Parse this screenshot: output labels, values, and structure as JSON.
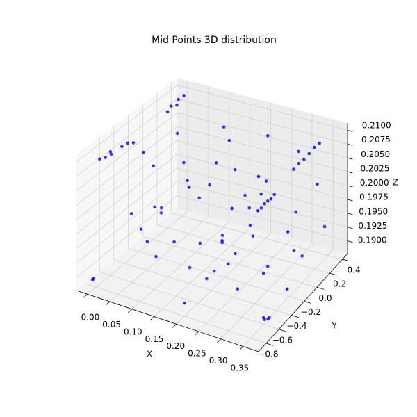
{
  "chart_data": {
    "type": "scatter3d",
    "title": "Mid Points 3D distribution",
    "x_label": "X",
    "y_label": "Y",
    "z_label": "Z",
    "color": "#0000ff",
    "grid": true,
    "xlim": [
      -0.025,
      0.385
    ],
    "ylim": [
      -0.92,
      0.48
    ],
    "zlim": [
      0.1877,
      0.2113
    ],
    "xticks": [
      {
        "value": 0,
        "label": "0.00"
      },
      0.05,
      {
        "value": 0.1,
        "label": "0.10"
      },
      0.15,
      {
        "value": 0.2,
        "label": "0.20"
      },
      0.25,
      {
        "value": 0.3,
        "label": "0.30"
      },
      0.35
    ],
    "yticks": [
      {
        "value": -0.8,
        "label": "−0.8"
      },
      {
        "value": -0.6,
        "label": "−0.6"
      },
      {
        "value": -0.4,
        "label": "−0.4"
      },
      {
        "value": -0.2,
        "label": "−0.2"
      },
      {
        "value": 0,
        "label": "0.0"
      },
      0.2,
      0.4
    ],
    "zticks": [
      {
        "value": 0.19,
        "label": "0.1900"
      },
      0.1925,
      {
        "value": 0.195,
        "label": "0.1950"
      },
      0.1975,
      {
        "value": 0.2,
        "label": "0.2000"
      },
      0.2025,
      {
        "value": 0.205,
        "label": "0.2050"
      },
      0.2075,
      {
        "value": 0.21,
        "label": "0.2100"
      }
    ],
    "x": [
      0.0,
      0.005,
      0.01,
      0.0,
      0.01,
      0.015,
      0.02,
      0.0,
      0.0,
      0.005,
      0.0,
      0.005,
      0.33,
      0.33,
      0.33,
      0.33,
      0.33,
      0.33,
      0.3,
      0.3,
      0.3,
      0.3,
      0.3,
      0.3,
      0.36,
      0.355,
      0.36,
      0.35,
      0.0,
      0.0,
      0.05,
      0.1,
      0.15,
      0.2,
      0.25,
      0.3,
      0.12,
      0.08,
      0.18,
      0.22,
      0.28,
      0.33,
      0.05,
      0.1,
      0.15,
      0.2,
      0.25,
      0.3,
      0.35,
      0.02,
      0.07,
      0.13,
      0.17,
      0.23,
      0.27,
      0.32,
      0.04,
      0.09,
      0.14,
      0.19,
      0.24,
      0.29,
      0.34,
      0.06,
      0.11,
      0.16,
      0.21,
      0.26,
      0.31,
      0.36,
      0.03,
      0.08,
      0.12,
      0.18,
      0.22,
      0.27,
      0.32,
      0.01,
      0.35,
      0.2
    ],
    "y": [
      -0.75,
      -0.7,
      -0.65,
      -0.6,
      -0.5,
      -0.45,
      -0.4,
      0.2,
      0.25,
      0.3,
      0.35,
      0.4,
      0.0,
      0.08,
      0.16,
      0.24,
      0.32,
      0.4,
      -0.35,
      -0.3,
      -0.25,
      -0.2,
      -0.15,
      -0.1,
      -0.6,
      -0.62,
      -0.58,
      -0.6,
      -0.85,
      -0.84,
      -0.3,
      -0.5,
      0.1,
      0.3,
      -0.1,
      0.2,
      -0.7,
      0.0,
      -0.2,
      -0.6,
      0.4,
      -0.4,
      0.35,
      0.2,
      -0.4,
      -0.8,
      0.1,
      -0.7,
      0.0,
      -0.1,
      -0.6,
      0.3,
      -0.05,
      0.25,
      -0.35,
      0.1,
      0.1,
      -0.25,
      -0.75,
      0.4,
      -0.5,
      -0.2,
      0.3,
      -0.45,
      0.0,
      0.2,
      -0.3,
      -0.75,
      -0.55,
      -0.3,
      0.25,
      -0.8,
      0.4,
      -0.6,
      0.05,
      0.3,
      -0.8,
      -0.2,
      0.35,
      -0.15
    ],
    "z": [
      0.2095,
      0.2094,
      0.2096,
      0.2093,
      0.2095,
      0.2097,
      0.2094,
      0.2085,
      0.209,
      0.2088,
      0.2092,
      0.2095,
      0.2075,
      0.2076,
      0.2074,
      0.2075,
      0.2077,
      0.2075,
      0.2035,
      0.2034,
      0.2036,
      0.2035,
      0.2033,
      0.2035,
      0.1889,
      0.1889,
      0.1889,
      0.1889,
      0.1895,
      0.1896,
      0.205,
      0.2,
      0.21,
      0.2,
      0.195,
      0.19,
      0.195,
      0.2,
      0.2075,
      0.1925,
      0.205,
      0.195,
      0.1925,
      0.1975,
      0.1905,
      0.19,
      0.2025,
      0.2,
      0.1925,
      0.195,
      0.1975,
      0.205,
      0.1915,
      0.2085,
      0.2055,
      0.1985,
      0.2065,
      0.192,
      0.2045,
      0.1955,
      0.1985,
      0.1905,
      0.2015,
      0.1935,
      0.1895,
      0.2015,
      0.1965,
      0.1965,
      0.2065,
      0.1905,
      0.1995,
      0.2025,
      0.1915,
      0.2075,
      0.1945,
      0.1915,
      0.1955,
      0.2055,
      0.1935,
      0.1895
    ]
  }
}
